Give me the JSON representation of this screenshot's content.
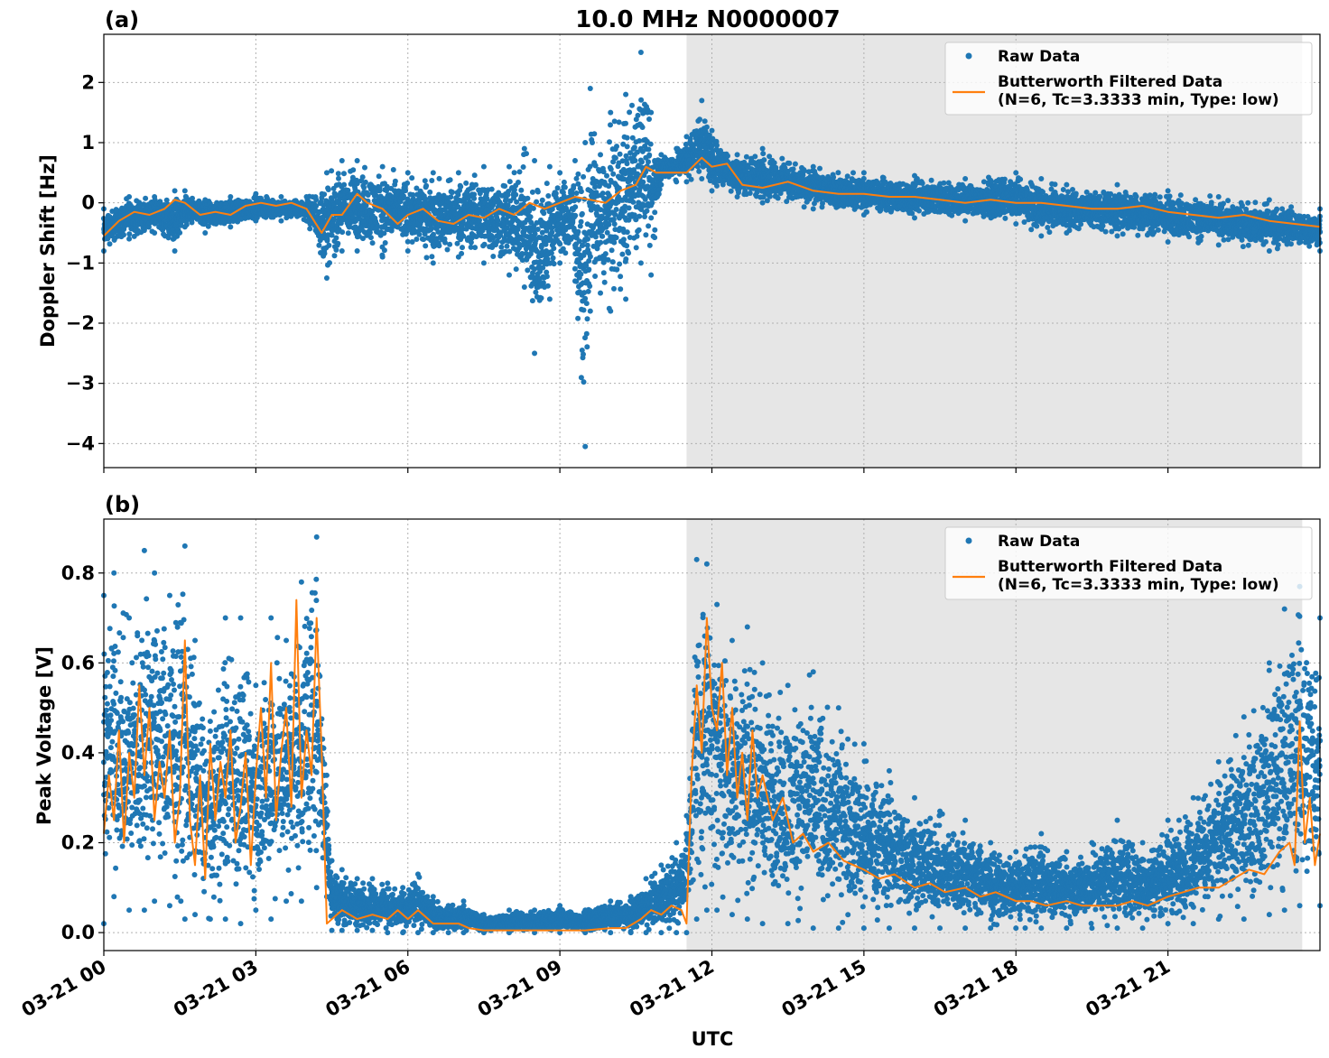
{
  "figure": {
    "title": "10.0 MHz N0000007",
    "xlabel": "UTC"
  },
  "chart_data": [
    {
      "type": "scatter",
      "panel_label": "(a)",
      "title": "10.0 MHz N0000007",
      "xlabel": "",
      "ylabel": "Doppler Shift [Hz]",
      "xlim_hours": [
        0,
        24
      ],
      "ylim": [
        -4.4,
        2.8
      ],
      "yticks": [
        2,
        1,
        0,
        -1,
        -2,
        -3,
        -4
      ],
      "ytick_labels": [
        "2",
        "1",
        "0",
        "−1",
        "−2",
        "−3",
        "−4"
      ],
      "grid": true,
      "shaded_region_hours": [
        11.5,
        23.65
      ],
      "legend_position": "top-right",
      "series": [
        {
          "name": "Raw Data",
          "color": "#1f77b4",
          "envelope": {
            "x_hours": [
              0,
              0.5,
              1,
              1.4,
              1.6,
              2,
              2.5,
              3,
              3.5,
              4,
              4.4,
              4.7,
              5,
              5.5,
              6,
              6.5,
              7,
              7.5,
              8,
              8.3,
              8.5,
              8.8,
              9,
              9.3,
              9.5,
              9.6,
              9.8,
              10,
              10.3,
              10.6,
              10.8,
              11,
              11.3,
              11.5,
              11.8,
              12,
              12.5,
              13,
              14,
              15,
              16,
              17,
              18,
              18.5,
              19,
              20,
              21,
              22,
              23,
              24
            ],
            "upper": [
              -0.1,
              0.1,
              0.1,
              0.2,
              0.2,
              0.05,
              0.1,
              0.15,
              0.1,
              0.1,
              0.5,
              0.7,
              0.7,
              0.6,
              0.5,
              0.5,
              0.5,
              0.6,
              0.6,
              0.9,
              0.7,
              0.6,
              0.5,
              0.7,
              1.0,
              1.9,
              0.8,
              1.5,
              1.8,
              2.5,
              1.5,
              0.8,
              0.9,
              1.1,
              1.7,
              1.2,
              0.8,
              0.9,
              0.6,
              0.5,
              0.45,
              0.4,
              0.5,
              0.4,
              0.3,
              0.3,
              0.2,
              0.1,
              0.05,
              -0.1
            ],
            "lower": [
              -0.8,
              -0.6,
              -0.5,
              -0.8,
              -0.4,
              -0.5,
              -0.4,
              -0.3,
              -0.3,
              -0.3,
              -1.25,
              -0.8,
              -0.8,
              -0.9,
              -0.8,
              -1.0,
              -0.9,
              -1.0,
              -1.2,
              -1.4,
              -2.5,
              -1.6,
              -1.0,
              -1.3,
              -4.05,
              -1.8,
              -1.5,
              -1.8,
              -1.6,
              -1.0,
              -1.2,
              0.3,
              0.35,
              0.35,
              0.4,
              0.2,
              0.1,
              0.0,
              -0.1,
              -0.2,
              -0.25,
              -0.3,
              -0.35,
              -0.55,
              -0.5,
              -0.55,
              -0.65,
              -0.7,
              -0.8,
              -0.8
            ]
          }
        },
        {
          "name": "Butterworth Filtered Data\n(N=6, Tc=3.3333 min, Type: low)",
          "color": "#ff7f0e",
          "x_hours": [
            0,
            0.3,
            0.6,
            0.9,
            1.2,
            1.4,
            1.6,
            1.9,
            2.2,
            2.5,
            2.8,
            3.1,
            3.4,
            3.7,
            4.0,
            4.3,
            4.5,
            4.7,
            5.0,
            5.2,
            5.5,
            5.8,
            6.0,
            6.3,
            6.6,
            6.9,
            7.2,
            7.5,
            7.8,
            8.1,
            8.4,
            8.7,
            9.0,
            9.3,
            9.6,
            9.9,
            10.2,
            10.5,
            10.7,
            10.9,
            11.2,
            11.5,
            11.8,
            12.0,
            12.3,
            12.6,
            13.0,
            13.5,
            14.0,
            14.5,
            15.0,
            15.5,
            16.0,
            16.5,
            17.0,
            17.5,
            18.0,
            18.5,
            19.0,
            19.5,
            20.0,
            20.5,
            21.0,
            21.5,
            22.0,
            22.5,
            23.0,
            23.5,
            24.0
          ],
          "y": [
            -0.55,
            -0.3,
            -0.15,
            -0.2,
            -0.1,
            0.05,
            0.0,
            -0.2,
            -0.15,
            -0.2,
            -0.05,
            0.0,
            -0.05,
            0.0,
            -0.1,
            -0.5,
            -0.2,
            -0.2,
            0.15,
            0.0,
            -0.1,
            -0.35,
            -0.2,
            -0.1,
            -0.3,
            -0.35,
            -0.2,
            -0.25,
            -0.1,
            -0.2,
            0.0,
            -0.1,
            0.0,
            0.1,
            0.05,
            0.0,
            0.2,
            0.3,
            0.6,
            0.5,
            0.5,
            0.5,
            0.75,
            0.6,
            0.65,
            0.3,
            0.25,
            0.35,
            0.2,
            0.15,
            0.15,
            0.1,
            0.1,
            0.05,
            0.0,
            0.05,
            0.0,
            0.0,
            -0.05,
            -0.1,
            -0.1,
            -0.05,
            -0.15,
            -0.2,
            -0.25,
            -0.2,
            -0.3,
            -0.35,
            -0.4
          ]
        }
      ]
    },
    {
      "type": "scatter",
      "panel_label": "(b)",
      "xlabel": "UTC",
      "ylabel": "Peak Voltage [V]",
      "xlim_hours": [
        0,
        24
      ],
      "ylim": [
        -0.04,
        0.92
      ],
      "yticks": [
        0.0,
        0.2,
        0.4,
        0.6,
        0.8
      ],
      "ytick_labels": [
        "0.0",
        "0.2",
        "0.4",
        "0.6",
        "0.8"
      ],
      "xticks_hours": [
        0,
        3,
        6,
        9,
        12,
        15,
        18,
        21
      ],
      "xtick_labels": [
        "03-21 00",
        "03-21 03",
        "03-21 06",
        "03-21 09",
        "03-21 12",
        "03-21 15",
        "03-21 18",
        "03-21 21"
      ],
      "grid": true,
      "shaded_region_hours": [
        11.5,
        23.65
      ],
      "legend_position": "top-right",
      "series": [
        {
          "name": "Raw Data",
          "color": "#1f77b4",
          "envelope": {
            "x_hours": [
              0,
              0.2,
              0.5,
              0.8,
              1.0,
              1.3,
              1.6,
              1.8,
              2.1,
              2.4,
              2.7,
              3.0,
              3.3,
              3.6,
              3.9,
              4.2,
              4.4,
              4.5,
              4.7,
              5.0,
              5.3,
              5.6,
              5.9,
              6.2,
              6.5,
              6.8,
              7.1,
              7.5,
              8.0,
              8.5,
              9.0,
              9.5,
              10.0,
              10.4,
              10.7,
              11.0,
              11.3,
              11.5,
              11.7,
              11.9,
              12.1,
              12.4,
              12.7,
              13.0,
              13.5,
              14.0,
              14.5,
              15.0,
              15.5,
              16.0,
              16.5,
              17.0,
              17.5,
              18.0,
              18.5,
              19.0,
              19.5,
              20.0,
              20.5,
              21.0,
              21.5,
              22.0,
              22.5,
              23.0,
              23.3,
              23.6,
              24.0
            ],
            "upper": [
              0.75,
              0.8,
              0.7,
              0.85,
              0.8,
              0.75,
              0.86,
              0.65,
              0.47,
              0.7,
              0.7,
              0.55,
              0.7,
              0.65,
              0.78,
              0.88,
              0.35,
              0.16,
              0.14,
              0.12,
              0.12,
              0.11,
              0.1,
              0.13,
              0.08,
              0.06,
              0.07,
              0.04,
              0.05,
              0.05,
              0.06,
              0.05,
              0.07,
              0.08,
              0.12,
              0.15,
              0.2,
              0.26,
              0.83,
              0.82,
              0.73,
              0.65,
              0.68,
              0.6,
              0.55,
              0.58,
              0.5,
              0.42,
              0.36,
              0.3,
              0.27,
              0.25,
              0.2,
              0.18,
              0.22,
              0.18,
              0.2,
              0.25,
              0.2,
              0.25,
              0.3,
              0.38,
              0.48,
              0.6,
              0.72,
              0.77,
              0.7
            ],
            "lower": [
              0.02,
              0.08,
              0.05,
              0.05,
              0.07,
              0.06,
              0.03,
              0.04,
              0.03,
              0.03,
              0.02,
              0.05,
              0.03,
              0.07,
              0.07,
              0.1,
              0.08,
              0.005,
              0.005,
              0.005,
              0.005,
              0.0,
              0.0,
              0.0,
              0.0,
              0.0,
              0.0,
              0.0,
              0.0,
              0.0,
              0.0,
              0.0,
              0.0,
              0.0,
              0.0,
              0.0,
              0.0,
              0.0,
              0.03,
              0.05,
              0.05,
              0.04,
              0.03,
              0.02,
              0.02,
              0.01,
              0.01,
              0.01,
              0.01,
              0.01,
              0.01,
              0.01,
              0.01,
              0.01,
              0.01,
              0.01,
              0.01,
              0.01,
              0.01,
              0.02,
              0.02,
              0.03,
              0.03,
              0.04,
              0.05,
              0.06,
              0.06
            ]
          }
        },
        {
          "name": "Butterworth Filtered Data\n(N=6, Tc=3.3333 min, Type: low)",
          "color": "#ff7f0e",
          "x_hours": [
            0,
            0.1,
            0.2,
            0.3,
            0.4,
            0.5,
            0.6,
            0.7,
            0.8,
            0.9,
            1.0,
            1.1,
            1.2,
            1.3,
            1.4,
            1.5,
            1.6,
            1.7,
            1.8,
            1.9,
            2.0,
            2.1,
            2.2,
            2.3,
            2.4,
            2.5,
            2.6,
            2.7,
            2.8,
            2.9,
            3.0,
            3.1,
            3.2,
            3.3,
            3.4,
            3.5,
            3.6,
            3.7,
            3.8,
            3.9,
            4.0,
            4.1,
            4.2,
            4.3,
            4.4,
            4.5,
            4.7,
            5.0,
            5.3,
            5.6,
            5.8,
            6.0,
            6.2,
            6.5,
            6.8,
            7.0,
            7.2,
            7.5,
            8.0,
            8.5,
            9.0,
            9.5,
            10.0,
            10.3,
            10.6,
            10.8,
            11.0,
            11.2,
            11.4,
            11.5,
            11.6,
            11.7,
            11.8,
            11.9,
            12.0,
            12.1,
            12.2,
            12.3,
            12.4,
            12.5,
            12.6,
            12.7,
            12.8,
            12.9,
            13.0,
            13.2,
            13.4,
            13.6,
            13.8,
            14.0,
            14.3,
            14.6,
            15.0,
            15.3,
            15.6,
            16.0,
            16.3,
            16.6,
            17.0,
            17.3,
            17.6,
            18.0,
            18.3,
            18.6,
            19.0,
            19.3,
            19.6,
            20.0,
            20.3,
            20.6,
            21.0,
            21.3,
            21.6,
            22.0,
            22.3,
            22.6,
            22.9,
            23.2,
            23.4,
            23.5,
            23.6,
            23.7,
            23.8,
            23.9,
            24.0
          ],
          "y": [
            0.22,
            0.35,
            0.25,
            0.45,
            0.2,
            0.4,
            0.3,
            0.55,
            0.35,
            0.5,
            0.25,
            0.38,
            0.3,
            0.45,
            0.2,
            0.3,
            0.65,
            0.25,
            0.15,
            0.35,
            0.12,
            0.42,
            0.25,
            0.38,
            0.3,
            0.45,
            0.2,
            0.28,
            0.4,
            0.15,
            0.35,
            0.5,
            0.3,
            0.6,
            0.25,
            0.4,
            0.5,
            0.28,
            0.74,
            0.3,
            0.45,
            0.35,
            0.7,
            0.4,
            0.02,
            0.03,
            0.05,
            0.03,
            0.04,
            0.03,
            0.05,
            0.03,
            0.05,
            0.02,
            0.02,
            0.02,
            0.01,
            0.005,
            0.005,
            0.005,
            0.005,
            0.005,
            0.01,
            0.01,
            0.03,
            0.05,
            0.04,
            0.06,
            0.05,
            0.02,
            0.35,
            0.55,
            0.4,
            0.7,
            0.5,
            0.45,
            0.6,
            0.35,
            0.5,
            0.3,
            0.4,
            0.25,
            0.45,
            0.3,
            0.35,
            0.25,
            0.3,
            0.2,
            0.22,
            0.18,
            0.2,
            0.16,
            0.14,
            0.12,
            0.13,
            0.1,
            0.11,
            0.09,
            0.1,
            0.08,
            0.09,
            0.07,
            0.07,
            0.06,
            0.07,
            0.06,
            0.06,
            0.06,
            0.07,
            0.06,
            0.08,
            0.09,
            0.1,
            0.1,
            0.12,
            0.14,
            0.13,
            0.18,
            0.2,
            0.15,
            0.47,
            0.2,
            0.3,
            0.15,
            0.22
          ]
        }
      ]
    }
  ]
}
